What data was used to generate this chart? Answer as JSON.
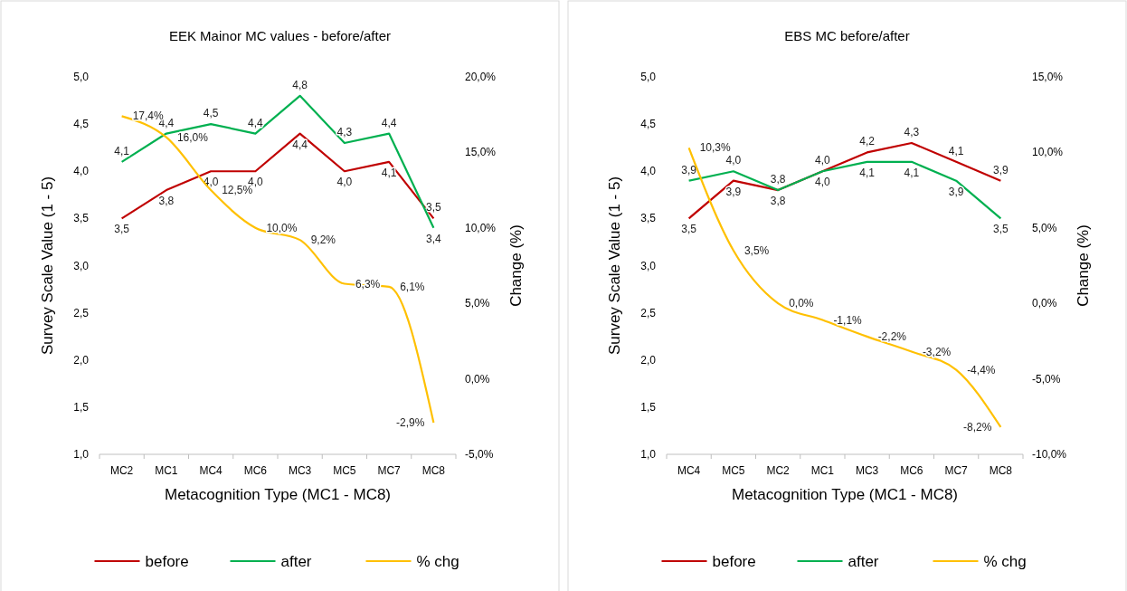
{
  "chart_data": [
    {
      "type": "line",
      "title": "EEK Mainor MC values - before/after",
      "xlabel": "Metacognition Type (MC1 - MC8)",
      "ylabel": "Survey  Scale Value (1 - 5)",
      "y2label": "Change (%)",
      "categories": [
        "MC2",
        "MC1",
        "MC4",
        "MC6",
        "MC3",
        "MC5",
        "MC7",
        "MC8"
      ],
      "series": [
        {
          "name": "before",
          "color": "#c00000",
          "values": [
            3.5,
            3.8,
            4.0,
            4.0,
            4.4,
            4.0,
            4.1,
            3.5
          ],
          "value_labels": [
            "3,5",
            "3,8",
            "4,0",
            "4,0",
            "4,4",
            "4,0",
            "4,1",
            "3,5"
          ]
        },
        {
          "name": "after",
          "color": "#00b050",
          "values": [
            4.1,
            4.4,
            4.5,
            4.4,
            4.8,
            4.3,
            4.4,
            3.4
          ],
          "value_labels": [
            "4,1",
            "4,4",
            "4,5",
            "4,4",
            "4,8",
            "4,3",
            "4,4",
            "3,4"
          ]
        },
        {
          "name": "% chg",
          "color": "#ffc000",
          "axis": "y2",
          "values": [
            17.4,
            16.0,
            12.5,
            10.0,
            9.2,
            6.3,
            6.1,
            -2.9
          ],
          "value_labels": [
            "17,4%",
            "16,0%",
            "12,5%",
            "10,0%",
            "9,2%",
            "6,3%",
            "6,1%",
            "-2,9%"
          ]
        }
      ],
      "ylim": [
        1,
        5
      ],
      "yticks": [
        {
          "value": 1,
          "label": "1,0"
        },
        {
          "value": 1.5,
          "label": "1,5"
        },
        {
          "value": 2,
          "label": "2,0"
        },
        {
          "value": 2.5,
          "label": "2,5"
        },
        {
          "value": 3,
          "label": "3,0"
        },
        {
          "value": 3.5,
          "label": "3,5"
        },
        {
          "value": 4,
          "label": "4,0"
        },
        {
          "value": 4.5,
          "label": "4,5"
        },
        {
          "value": 5,
          "label": "5,0"
        }
      ],
      "y2lim": [
        -5,
        20
      ],
      "y2ticks": [
        {
          "value": -5,
          "label": "-5,0%"
        },
        {
          "value": 0,
          "label": "0,0%"
        },
        {
          "value": 5,
          "label": "5,0%"
        },
        {
          "value": 10,
          "label": "10,0%"
        },
        {
          "value": 15,
          "label": "15,0%"
        },
        {
          "value": 20,
          "label": "20,0%"
        }
      ],
      "legend": "bottom",
      "grid": false,
      "marker": "none",
      "line_style": "solid"
    },
    {
      "type": "line",
      "title": "EBS MC before/after",
      "xlabel": "Metacognition Type (MC1 - MC8)",
      "ylabel": "Survey  Scale Value (1 - 5)",
      "y2label": "Change (%)",
      "categories": [
        "MC4",
        "MC5",
        "MC2",
        "MC1",
        "MC3",
        "MC6",
        "MC7",
        "MC8"
      ],
      "series": [
        {
          "name": "before",
          "color": "#c00000",
          "values": [
            3.5,
            3.9,
            3.8,
            4.0,
            4.2,
            4.3,
            4.1,
            3.9
          ],
          "value_labels": [
            "3,5",
            "3,9",
            "3,8",
            "4,0",
            "4,2",
            "4,3",
            "4,1",
            "3,9"
          ]
        },
        {
          "name": "after",
          "color": "#00b050",
          "values": [
            3.9,
            4.0,
            3.8,
            4.0,
            4.1,
            4.1,
            3.9,
            3.5
          ],
          "value_labels": [
            "3,9",
            "4,0",
            "3,8",
            "4,0",
            "4,1",
            "4,1",
            "3,9",
            "3,5"
          ]
        },
        {
          "name": "% chg",
          "color": "#ffc000",
          "axis": "y2",
          "values": [
            10.3,
            3.5,
            0.0,
            -1.1,
            -2.2,
            -3.2,
            -4.4,
            -8.2
          ],
          "value_labels": [
            "10,3%",
            "3,5%",
            "0,0%",
            "-1,1%",
            "-2,2%",
            "-3,2%",
            "-4,4%",
            "-8,2%"
          ]
        }
      ],
      "ylim": [
        1,
        5
      ],
      "yticks": [
        {
          "value": 1,
          "label": "1,0"
        },
        {
          "value": 1.5,
          "label": "1,5"
        },
        {
          "value": 2,
          "label": "2,0"
        },
        {
          "value": 2.5,
          "label": "2,5"
        },
        {
          "value": 3,
          "label": "3,0"
        },
        {
          "value": 3.5,
          "label": "3,5"
        },
        {
          "value": 4,
          "label": "4,0"
        },
        {
          "value": 4.5,
          "label": "4,5"
        },
        {
          "value": 5,
          "label": "5,0"
        }
      ],
      "y2lim": [
        -10,
        15
      ],
      "y2ticks": [
        {
          "value": -10,
          "label": "-10,0%"
        },
        {
          "value": -5,
          "label": "-5,0%"
        },
        {
          "value": 0,
          "label": "0,0%"
        },
        {
          "value": 5,
          "label": "5,0%"
        },
        {
          "value": 10,
          "label": "10,0%"
        },
        {
          "value": 15,
          "label": "15,0%"
        }
      ],
      "legend": "bottom",
      "grid": false,
      "marker": "none",
      "line_style": "solid"
    }
  ]
}
